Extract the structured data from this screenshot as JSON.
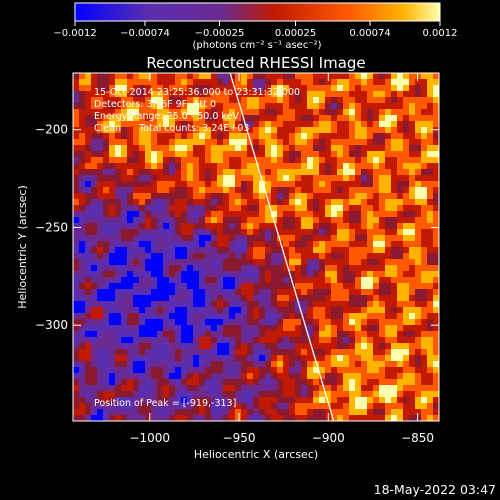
{
  "chart_data": {
    "type": "heatmap",
    "title": "Reconstructed RHESSI Image",
    "xlabel": "Heliocentric X (arcsec)",
    "ylabel": "Heliocentric Y (arcsec)",
    "xlim": [
      -1043,
      -838
    ],
    "ylim": [
      -349,
      -171
    ],
    "x_ticks": [
      -1000,
      -950,
      -900,
      -850
    ],
    "x_tick_labels": [
      "−1000",
      "−950",
      "−900",
      "−850"
    ],
    "y_ticks": [
      -200,
      -250,
      -300
    ],
    "y_tick_labels": [
      "−200",
      "−250",
      "−300"
    ],
    "colorbar": {
      "min": -0.0012,
      "max": 0.0012,
      "ticks": [
        -0.0012,
        -0.00074,
        -0.00025,
        0.00025,
        0.00074,
        0.0012
      ],
      "tick_labels": [
        "−0.0012",
        "−0.00074",
        "−0.00025",
        "0.00025",
        "0.00074",
        "0.0012"
      ],
      "unit_label": "(photons cm⁻² s⁻¹ asec⁻²)"
    },
    "annotations": [
      "15-Oct-2014 23:25:36.000 to 23:31:32.000",
      "Detectors: 3F 6F 9F, Att 0",
      "Energy Range: 25.0 - 50.0 keV",
      "Clean      Total counts: 3.24E+03"
    ],
    "peak_label": "Position of Peak = [-919,-313]",
    "limb_line": {
      "x": [
        -955,
        -897
      ],
      "y": [
        -171,
        -349
      ]
    },
    "grid": false,
    "colormap": [
      "#0000ff",
      "#5a2eb0",
      "#6a2a92",
      "#8a1a30",
      "#c21a00",
      "#ff5a00",
      "#ffb400",
      "#ffffb0"
    ]
  },
  "footer": {
    "timestamp": "18-May-2022 03:47"
  }
}
